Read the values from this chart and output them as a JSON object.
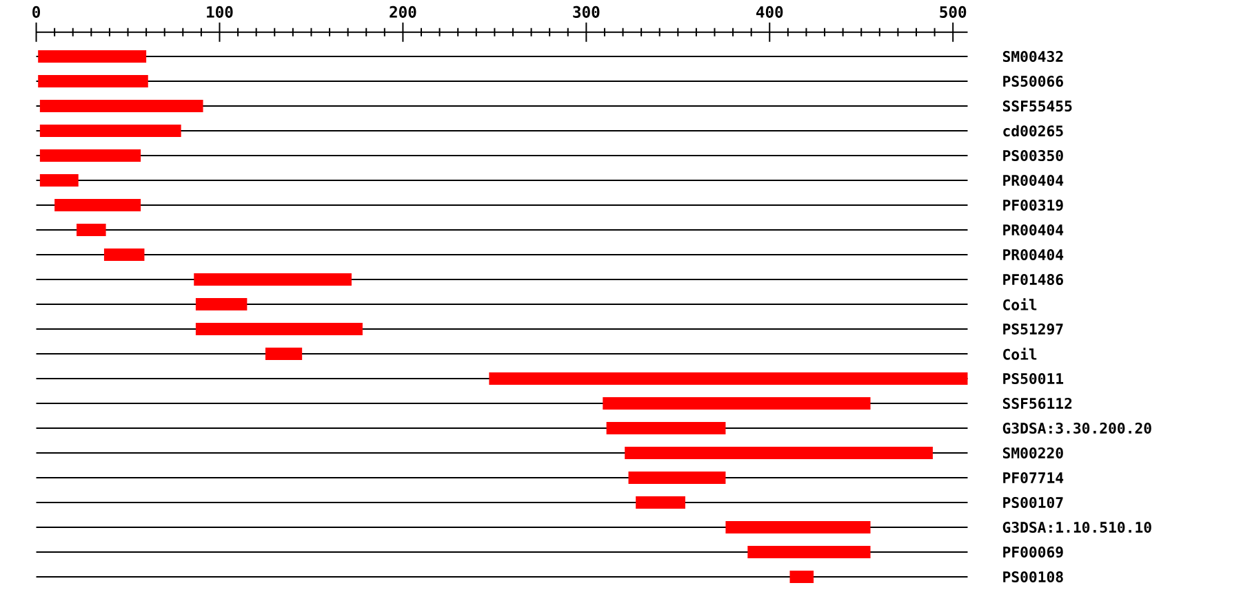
{
  "chart_data": {
    "type": "bar",
    "orientation": "horizontal",
    "color": "#ff0000",
    "categories": [
      "SM00432",
      "PS50066",
      "SSF55455",
      "cd00265",
      "PS00350",
      "PR00404",
      "PF00319",
      "PR00404",
      "PR00404",
      "PF01486",
      "Coil",
      "PS51297",
      "Coil",
      "PS50011",
      "SSF56112",
      "G3DSA:3.30.200.20",
      "SM00220",
      "PF07714",
      "PS00107",
      "G3DSA:1.10.510.10",
      "PF00069",
      "PS00108"
    ],
    "base": [
      1,
      1,
      2,
      2,
      2,
      2,
      10,
      22,
      37,
      86,
      87,
      87,
      125,
      247,
      309,
      311,
      321,
      323,
      327,
      376,
      388,
      411
    ],
    "values": [
      59,
      60,
      89,
      77,
      55,
      21,
      47,
      16,
      22,
      86,
      28,
      91,
      20,
      261,
      146,
      65,
      168,
      53,
      27,
      79,
      67,
      13
    ],
    "xlim": [
      0,
      508
    ],
    "xticks": [
      0,
      {
        "value": 10,
        "label": null
      },
      {
        "value": 20,
        "label": null
      },
      {
        "value": 30,
        "label": null
      },
      {
        "value": 40,
        "label": null
      },
      {
        "value": 50,
        "label": null
      },
      {
        "value": 60,
        "label": null
      },
      {
        "value": 70,
        "label": null
      },
      {
        "value": 80,
        "label": null
      },
      {
        "value": 90,
        "label": null
      },
      100,
      {
        "value": 110,
        "label": null
      },
      {
        "value": 120,
        "label": null
      },
      {
        "value": 130,
        "label": null
      },
      {
        "value": 140,
        "label": null
      },
      {
        "value": 150,
        "label": null
      },
      {
        "value": 160,
        "label": null
      },
      {
        "value": 170,
        "label": null
      },
      {
        "value": 180,
        "label": null
      },
      {
        "value": 190,
        "label": null
      },
      200,
      {
        "value": 210,
        "label": null
      },
      {
        "value": 220,
        "label": null
      },
      {
        "value": 230,
        "label": null
      },
      {
        "value": 240,
        "label": null
      },
      {
        "value": 250,
        "label": null
      },
      {
        "value": 260,
        "label": null
      },
      {
        "value": 270,
        "label": null
      },
      {
        "value": 280,
        "label": null
      },
      {
        "value": 290,
        "label": null
      },
      300,
      {
        "value": 310,
        "label": null
      },
      {
        "value": 320,
        "label": null
      },
      {
        "value": 330,
        "label": null
      },
      {
        "value": 340,
        "label": null
      },
      {
        "value": 350,
        "label": null
      },
      {
        "value": 360,
        "label": null
      },
      {
        "value": 370,
        "label": null
      },
      {
        "value": 380,
        "label": null
      },
      {
        "value": 390,
        "label": null
      },
      400,
      {
        "value": 410,
        "label": null
      },
      {
        "value": 420,
        "label": null
      },
      {
        "value": 430,
        "label": null
      },
      {
        "value": 440,
        "label": null
      },
      {
        "value": 450,
        "label": null
      },
      {
        "value": 460,
        "label": null
      },
      {
        "value": 470,
        "label": null
      },
      {
        "value": 480,
        "label": null
      },
      {
        "value": 490,
        "label": null
      },
      500
    ],
    "grid": "y"
  }
}
